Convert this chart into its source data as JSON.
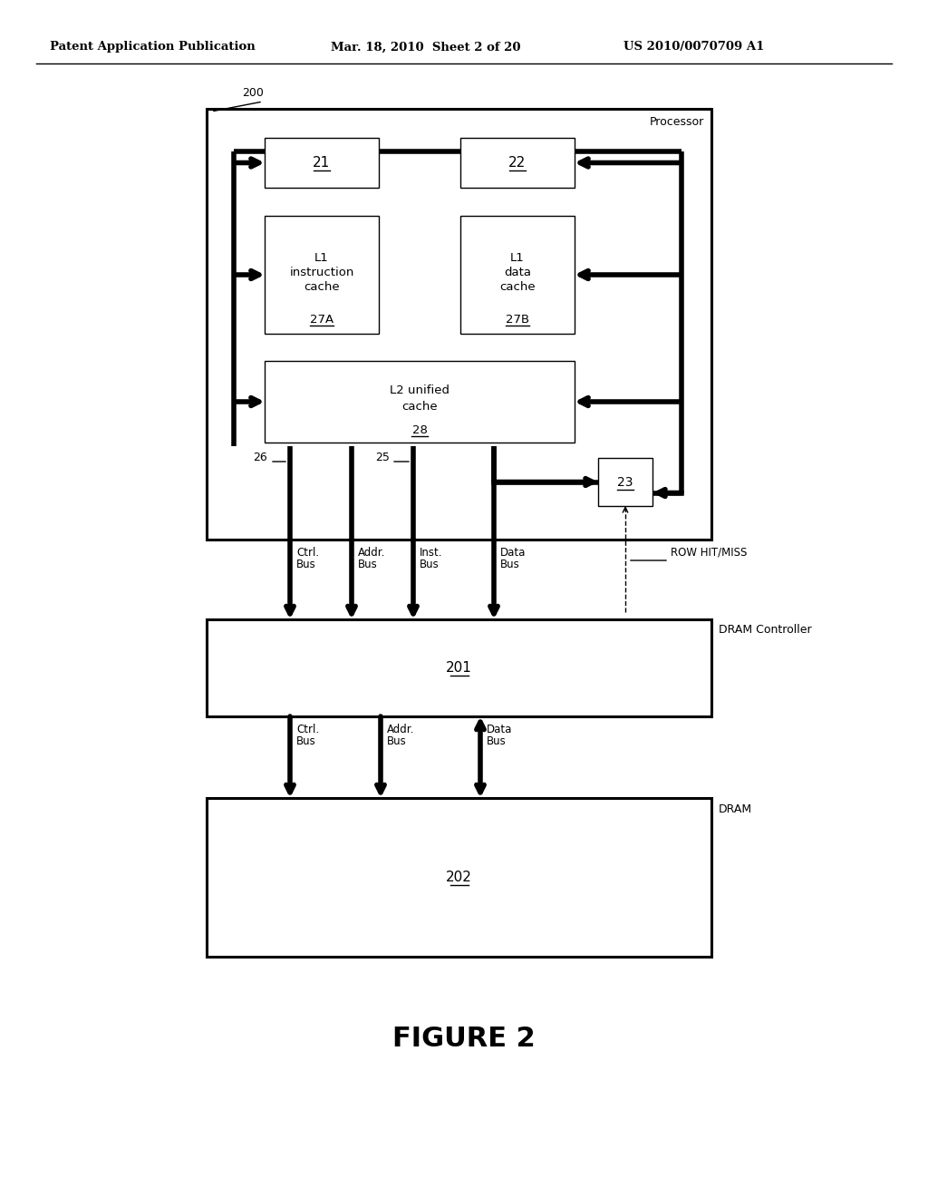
{
  "bg_color": "#ffffff",
  "header_left": "Patent Application Publication",
  "header_mid": "Mar. 18, 2010  Sheet 2 of 20",
  "header_right": "US 2010/0070709 A1",
  "figure_label": "FIGURE 2",
  "processor_label": "Processor",
  "dram_controller_label": "DRAM Controller",
  "dram_label": "DRAM",
  "box200_label": "200",
  "box21_label": "21",
  "box22_label": "22",
  "box27A_label": "27A",
  "box27A_line1": "L1",
  "box27A_line2": "instruction",
  "box27A_line3": "cache",
  "box27B_label": "27B",
  "box27B_line1": "L1",
  "box27B_line2": "data",
  "box27B_line3": "cache",
  "box28_label": "28",
  "box28_line1": "L2 unified",
  "box28_line2": "cache",
  "box23_label": "23",
  "box201_label": "201",
  "box202_label": "202",
  "label26": "26",
  "label25": "25",
  "row_hit_miss": "ROW HIT/MISS",
  "bus_labels_top": [
    "Ctrl.\nBus",
    "Addr.\nBus",
    "Inst.\nBus",
    "Data\nBus"
  ],
  "bus_labels_bot": [
    "Ctrl.\nBus",
    "Addr.\nBus",
    "Data\nBus"
  ]
}
